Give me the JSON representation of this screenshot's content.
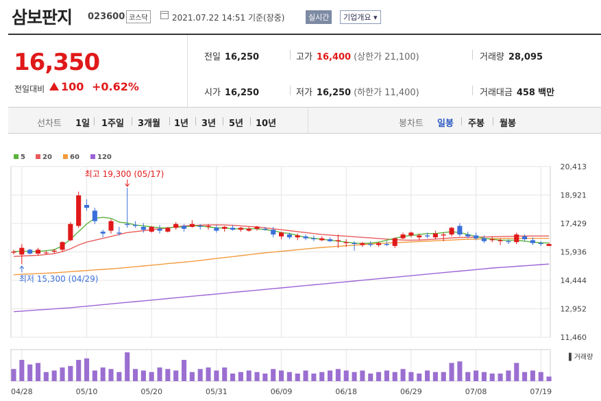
{
  "header": {
    "name": "삼보판지",
    "code": "023600",
    "market": "코스닥",
    "datetime": "2021.07.22 14:51",
    "basis": "기준(장중)",
    "realtime": "실시간",
    "company_info": "기업개요"
  },
  "quote": {
    "price": "16,350",
    "change_label": "전일대비",
    "change": "100",
    "change_pct": "+0.62%",
    "prev_label": "전일",
    "prev": "16,250",
    "open_label": "시가",
    "open": "16,250",
    "high_label": "고가",
    "high": "16,400",
    "upper_limit": "(상한가 21,100)",
    "low_label": "저가",
    "low": "16,250",
    "lower_limit": "(하한가 11,400)",
    "volume_label": "거래량",
    "volume": "28,095",
    "amount_label": "거래대금",
    "amount": "458",
    "amount_unit": "백만"
  },
  "toolbar": {
    "line_label": "선차트",
    "line_periods": [
      "1일",
      "1주일",
      "3개월",
      "1년",
      "3년",
      "5년",
      "10년"
    ],
    "candle_label": "봉차트",
    "candle_periods": [
      "일봉",
      "주봉",
      "월봉"
    ],
    "selected_candle": "일봉"
  },
  "colors": {
    "up": "#e01919",
    "down": "#3a6fd8",
    "ma5": "#5bb33c",
    "ma20": "#e85b5b",
    "ma60": "#f39a3c",
    "ma120": "#9b63d6",
    "volume": "#9b6fd1"
  },
  "chart_data": {
    "type": "candlestick",
    "legend": [
      "5",
      "20",
      "60",
      "120"
    ],
    "ylim": [
      11460,
      20413
    ],
    "yticks": [
      "20,413",
      "18,921",
      "17,429",
      "15,936",
      "14,444",
      "12,952",
      "11,460"
    ],
    "xticks": [
      "04/28",
      "05/10",
      "05/20",
      "05/31",
      "06/09",
      "06/18",
      "06/29",
      "07/08",
      "07/19"
    ],
    "xtick_index": [
      1,
      9,
      17,
      25,
      33,
      41,
      49,
      57,
      65
    ],
    "high_note": "최고 19,300 (05/17)",
    "low_note": "최저 15,300 (04/29)",
    "volume_label": "거래량",
    "candles": [
      [
        15900,
        16050,
        15800,
        15950
      ],
      [
        15800,
        16350,
        15300,
        16150
      ],
      [
        16050,
        16100,
        15800,
        15850
      ],
      [
        15850,
        16150,
        15750,
        16050
      ],
      [
        15900,
        16000,
        15800,
        15900
      ],
      [
        15950,
        16100,
        15850,
        16000
      ],
      [
        16050,
        16500,
        15950,
        16450
      ],
      [
        16550,
        17500,
        16500,
        17400
      ],
      [
        17300,
        19100,
        17200,
        18900
      ],
      [
        18400,
        18700,
        18100,
        18250
      ],
      [
        18100,
        18250,
        17400,
        17550
      ],
      [
        17000,
        17100,
        16700,
        16900
      ],
      [
        17050,
        17650,
        16900,
        17550
      ],
      [
        16950,
        17250,
        16800,
        16900
      ],
      [
        17400,
        19300,
        17200,
        17350
      ],
      [
        17350,
        17550,
        17200,
        17300
      ],
      [
        17250,
        17450,
        16950,
        17100
      ],
      [
        17000,
        17300,
        16950,
        17250
      ],
      [
        17150,
        17350,
        16900,
        17050
      ],
      [
        17000,
        17250,
        16950,
        17200
      ],
      [
        17200,
        17500,
        17100,
        17400
      ],
      [
        17300,
        17400,
        17000,
        17150
      ],
      [
        17250,
        17600,
        17200,
        17400
      ],
      [
        17300,
        17400,
        17100,
        17250
      ],
      [
        17250,
        17400,
        17100,
        17300
      ],
      [
        17200,
        17350,
        16950,
        17050
      ],
      [
        17150,
        17300,
        17000,
        17250
      ],
      [
        17200,
        17350,
        17050,
        17100
      ],
      [
        17100,
        17250,
        17000,
        17200
      ],
      [
        17050,
        17250,
        17000,
        17150
      ],
      [
        17150,
        17300,
        17050,
        17250
      ],
      [
        17150,
        17250,
        17050,
        17100
      ],
      [
        17100,
        17250,
        16700,
        16850
      ],
      [
        16750,
        17000,
        16600,
        16950
      ],
      [
        16850,
        16950,
        16600,
        16700
      ],
      [
        16700,
        16900,
        16550,
        16800
      ],
      [
        16750,
        16850,
        16550,
        16650
      ],
      [
        16650,
        16800,
        16500,
        16600
      ],
      [
        16550,
        16750,
        16500,
        16650
      ],
      [
        16600,
        16700,
        16450,
        16500
      ],
      [
        16500,
        16850,
        16150,
        16550
      ],
      [
        16400,
        16600,
        16200,
        16450
      ],
      [
        16400,
        16500,
        16000,
        16350
      ],
      [
        16300,
        16450,
        16200,
        16400
      ],
      [
        16350,
        16500,
        16200,
        16300
      ],
      [
        16300,
        16450,
        16200,
        16400
      ],
      [
        16350,
        16500,
        16250,
        16300
      ],
      [
        16250,
        16700,
        16150,
        16650
      ],
      [
        16650,
        16950,
        16600,
        16850
      ],
      [
        16800,
        17000,
        16700,
        16950
      ],
      [
        16700,
        16900,
        16550,
        16800
      ],
      [
        16800,
        16950,
        16650,
        16750
      ],
      [
        16700,
        17050,
        16600,
        16900
      ],
      [
        16800,
        16950,
        16500,
        16850
      ],
      [
        16850,
        17250,
        16750,
        17200
      ],
      [
        17300,
        17450,
        16750,
        16850
      ],
      [
        16850,
        17000,
        16650,
        16750
      ],
      [
        16800,
        16950,
        16550,
        16650
      ],
      [
        16650,
        16800,
        16400,
        16500
      ],
      [
        16550,
        16750,
        16450,
        16600
      ],
      [
        16500,
        16650,
        16300,
        16550
      ],
      [
        16500,
        16600,
        16350,
        16450
      ],
      [
        16450,
        16950,
        16350,
        16850
      ],
      [
        16750,
        16850,
        16500,
        16600
      ],
      [
        16550,
        16700,
        16300,
        16400
      ],
      [
        16400,
        16500,
        16250,
        16350
      ],
      [
        16250,
        16400,
        16250,
        16350
      ]
    ],
    "ma5": [
      15950,
      15980,
      15960,
      15950,
      16000,
      16050,
      16250,
      16600,
      17000,
      17400,
      17700,
      17750,
      17700,
      17500,
      17450,
      17350,
      17300,
      17250,
      17200,
      17200,
      17250,
      17250,
      17300,
      17300,
      17250,
      17200,
      17200,
      17150,
      17150,
      17150,
      17150,
      17100,
      17050,
      16950,
      16900,
      16800,
      16700,
      16650,
      16600,
      16550,
      16500,
      16450,
      16400,
      16380,
      16400,
      16450,
      16550,
      16650,
      16750,
      16800,
      16850,
      16900,
      16900,
      16950,
      17000,
      16950,
      16850,
      16750,
      16650,
      16600,
      16550,
      16550,
      16550,
      16500,
      16450,
      16420,
      16400
    ],
    "ma20": [
      15700,
      15720,
      15740,
      15760,
      15800,
      15850,
      15950,
      16100,
      16300,
      16450,
      16550,
      16650,
      16750,
      16850,
      16950,
      17000,
      17050,
      17100,
      17150,
      17200,
      17250,
      17300,
      17320,
      17340,
      17350,
      17360,
      17350,
      17330,
      17300,
      17270,
      17250,
      17200,
      17150,
      17100,
      17050,
      17000,
      16950,
      16900,
      16850,
      16820,
      16790,
      16760,
      16730,
      16700,
      16670,
      16640,
      16610,
      16580,
      16560,
      16550,
      16560,
      16580,
      16610,
      16640,
      16670,
      16690,
      16700,
      16710,
      16720,
      16730,
      16740,
      16750,
      16760,
      16770,
      16770,
      16770,
      16770
    ],
    "ma60": [
      14740,
      14760,
      14780,
      14800,
      14820,
      14840,
      14870,
      14900,
      14930,
      14960,
      14990,
      15020,
      15050,
      15080,
      15120,
      15160,
      15200,
      15240,
      15280,
      15320,
      15360,
      15400,
      15440,
      15490,
      15540,
      15590,
      15640,
      15690,
      15740,
      15790,
      15840,
      15890,
      15930,
      15970,
      16010,
      16050,
      16090,
      16130,
      16170,
      16200,
      16230,
      16260,
      16290,
      16320,
      16350,
      16380,
      16400,
      16420,
      16440,
      16460,
      16480,
      16500,
      16520,
      16540,
      16560,
      16580,
      16600,
      16610,
      16620,
      16630,
      16640,
      16650,
      16650,
      16650,
      16650,
      16650,
      16650
    ],
    "ma120": [
      12800,
      12830,
      12860,
      12890,
      12920,
      12950,
      12980,
      13010,
      13050,
      13090,
      13130,
      13170,
      13210,
      13250,
      13290,
      13330,
      13370,
      13410,
      13450,
      13490,
      13530,
      13570,
      13610,
      13650,
      13690,
      13730,
      13770,
      13810,
      13850,
      13890,
      13930,
      13970,
      14010,
      14050,
      14090,
      14130,
      14170,
      14210,
      14250,
      14290,
      14330,
      14370,
      14410,
      14450,
      14490,
      14530,
      14570,
      14610,
      14650,
      14690,
      14730,
      14770,
      14810,
      14850,
      14890,
      14930,
      14970,
      15010,
      15050,
      15090,
      15120,
      15150,
      15180,
      15210,
      15240,
      15270,
      15300
    ],
    "volumes": [
      40,
      70,
      55,
      60,
      30,
      35,
      45,
      50,
      70,
      75,
      35,
      45,
      40,
      30,
      95,
      40,
      35,
      30,
      45,
      40,
      35,
      70,
      30,
      40,
      45,
      35,
      45,
      25,
      30,
      35,
      30,
      25,
      40,
      35,
      30,
      25,
      35,
      25,
      30,
      35,
      40,
      35,
      30,
      35,
      25,
      30,
      35,
      30,
      40,
      30,
      25,
      35,
      30,
      30,
      60,
      65,
      30,
      35,
      30,
      25,
      25,
      35,
      60,
      30,
      35,
      30,
      15
    ]
  }
}
